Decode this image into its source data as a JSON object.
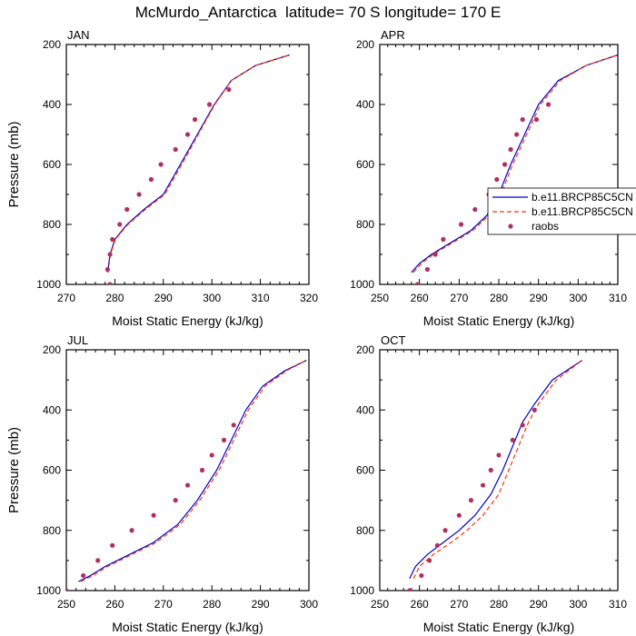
{
  "title": "McMurdo_Antarctica  latitude= 70 S longitude= 170 E",
  "chart_data": [
    {
      "type": "line",
      "panel_label": "JAN",
      "xlabel": "Moist Static Energy (kJ/kg)",
      "ylabel": "Pressure (mb)",
      "xlim": [
        270,
        320
      ],
      "ylim": [
        1000,
        200
      ],
      "xticks": [
        270,
        280,
        290,
        300,
        310,
        320
      ],
      "yticks": [
        200,
        400,
        600,
        800,
        1000
      ],
      "y_scale": "linear, inverted",
      "grid": false,
      "series": [
        {
          "name": "b.e11.BRCP85C5CN",
          "color": "#0000cc",
          "style": "solid",
          "x": [
            278.5,
            279.0,
            280.0,
            282.5,
            286.0,
            290.0,
            293.5,
            297.0,
            300.5,
            304.0,
            309.0,
            316.0
          ],
          "y": [
            960,
            900,
            850,
            800,
            750,
            700,
            600,
            500,
            400,
            320,
            270,
            235
          ]
        },
        {
          "name": "b.e11.BRCP85C5CN",
          "color": "#ff3300",
          "style": "dashed",
          "x": [
            278.6,
            279.1,
            280.1,
            282.7,
            286.3,
            290.3,
            293.8,
            297.2,
            300.6,
            304.0,
            309.0,
            316.0
          ],
          "y": [
            960,
            900,
            850,
            800,
            750,
            700,
            600,
            500,
            400,
            320,
            270,
            235
          ]
        },
        {
          "name": "raobs",
          "color": "#b03060",
          "style": "markers",
          "x": [
            279.0,
            278.5,
            279.0,
            279.5,
            281.0,
            282.5,
            285.0,
            287.5,
            289.5,
            292.5,
            295.0,
            296.5,
            299.5,
            303.5
          ],
          "y": [
            1000,
            950,
            900,
            850,
            800,
            750,
            700,
            650,
            600,
            550,
            500,
            450,
            400,
            350
          ]
        }
      ]
    },
    {
      "type": "line",
      "panel_label": "APR",
      "xlabel": "Moist Static Energy (kJ/kg)",
      "ylabel": "",
      "xlim": [
        250,
        310
      ],
      "ylim": [
        1000,
        200
      ],
      "xticks": [
        250,
        260,
        270,
        280,
        290,
        300,
        310
      ],
      "yticks": [
        200,
        400,
        600,
        800,
        1000
      ],
      "y_scale": "linear, inverted",
      "grid": false,
      "legend": "right",
      "series": [
        {
          "name": "b.e11.BRCP85C5CN",
          "color": "#0000cc",
          "style": "solid",
          "x": [
            258.0,
            260.0,
            263.0,
            268.0,
            273.0,
            277.0,
            280.0,
            283.0,
            286.5,
            290.0,
            295.0,
            302.0,
            310.0
          ],
          "y": [
            960,
            930,
            900,
            860,
            820,
            770,
            700,
            600,
            500,
            400,
            320,
            270,
            235
          ]
        },
        {
          "name": "b.e11.BRCP85C5CN",
          "color": "#ff3300",
          "style": "dashed",
          "x": [
            258.5,
            260.5,
            263.5,
            268.5,
            273.5,
            277.5,
            280.5,
            283.5,
            287.0,
            290.5,
            295.5,
            302.0,
            310.0
          ],
          "y": [
            960,
            930,
            900,
            860,
            820,
            770,
            700,
            600,
            500,
            400,
            320,
            270,
            235
          ]
        },
        {
          "name": "raobs",
          "color": "#b03060",
          "style": "markers",
          "x": [
            259.5,
            262.0,
            264.0,
            266.0,
            270.5,
            274.0,
            277.5,
            279.5,
            281.5,
            283.0,
            284.5,
            286.0,
            289.5,
            292.5
          ],
          "y": [
            1000,
            950,
            900,
            850,
            800,
            750,
            700,
            650,
            600,
            550,
            500,
            450,
            450,
            400
          ]
        }
      ]
    },
    {
      "type": "line",
      "panel_label": "JUL",
      "xlabel": "Moist Static Energy (kJ/kg)",
      "ylabel": "Pressure (mb)",
      "xlim": [
        250,
        300
      ],
      "ylim": [
        1000,
        200
      ],
      "xticks": [
        250,
        260,
        270,
        280,
        290,
        300
      ],
      "yticks": [
        200,
        400,
        600,
        800,
        1000
      ],
      "y_scale": "linear, inverted",
      "grid": false,
      "series": [
        {
          "name": "b.e11.BRCP85C5CN",
          "color": "#0000cc",
          "style": "solid",
          "x": [
            252.5,
            255.0,
            258.0,
            263.0,
            268.0,
            273.0,
            277.0,
            281.0,
            284.0,
            287.0,
            290.5,
            295.0,
            299.5
          ],
          "y": [
            970,
            950,
            920,
            880,
            840,
            780,
            700,
            600,
            500,
            400,
            320,
            270,
            235
          ]
        },
        {
          "name": "b.e11.BRCP85C5CN",
          "color": "#ff3300",
          "style": "dashed",
          "x": [
            253.0,
            255.5,
            258.5,
            263.5,
            268.5,
            273.5,
            277.5,
            281.5,
            284.5,
            287.5,
            291.0,
            295.3,
            299.5
          ],
          "y": [
            970,
            950,
            920,
            880,
            840,
            780,
            700,
            600,
            500,
            400,
            320,
            270,
            235
          ]
        },
        {
          "name": "raobs",
          "color": "#b03060",
          "style": "markers",
          "x": [
            250.0,
            253.5,
            256.5,
            259.5,
            263.5,
            268.0,
            272.5,
            275.0,
            278.0,
            280.0,
            282.5,
            284.5
          ],
          "y": [
            1000,
            950,
            900,
            850,
            800,
            750,
            700,
            650,
            600,
            550,
            500,
            450
          ]
        }
      ]
    },
    {
      "type": "line",
      "panel_label": "OCT",
      "xlabel": "Moist Static Energy (kJ/kg)",
      "ylabel": "",
      "xlim": [
        250,
        310
      ],
      "ylim": [
        1000,
        200
      ],
      "xticks": [
        250,
        260,
        270,
        280,
        290,
        300,
        310
      ],
      "yticks": [
        200,
        400,
        600,
        800,
        1000
      ],
      "y_scale": "linear, inverted",
      "grid": false,
      "series": [
        {
          "name": "b.e11.BRCP85C5CN",
          "color": "#0000cc",
          "style": "solid",
          "x": [
            257.5,
            259.0,
            262.0,
            266.0,
            270.0,
            274.0,
            278.0,
            281.0,
            283.5,
            286.0,
            289.0,
            293.5,
            301.0
          ],
          "y": [
            960,
            920,
            880,
            840,
            800,
            750,
            680,
            600,
            520,
            440,
            380,
            300,
            235
          ]
        },
        {
          "name": "b.e11.BRCP85C5CN",
          "color": "#ff3300",
          "style": "dashed",
          "x": [
            258.5,
            260.0,
            263.5,
            268.0,
            272.0,
            276.0,
            280.0,
            282.5,
            285.0,
            287.5,
            290.0,
            294.5,
            301.0
          ],
          "y": [
            960,
            920,
            880,
            840,
            800,
            750,
            680,
            600,
            520,
            440,
            380,
            300,
            235
          ]
        },
        {
          "name": "raobs",
          "color": "#b03060",
          "style": "markers",
          "x": [
            257.5,
            260.5,
            262.5,
            264.5,
            266.5,
            270.0,
            273.0,
            276.0,
            278.0,
            280.0,
            283.5,
            286.0,
            289.0
          ],
          "y": [
            1000,
            950,
            900,
            850,
            800,
            750,
            700,
            650,
            600,
            550,
            500,
            450,
            400
          ]
        }
      ]
    }
  ]
}
